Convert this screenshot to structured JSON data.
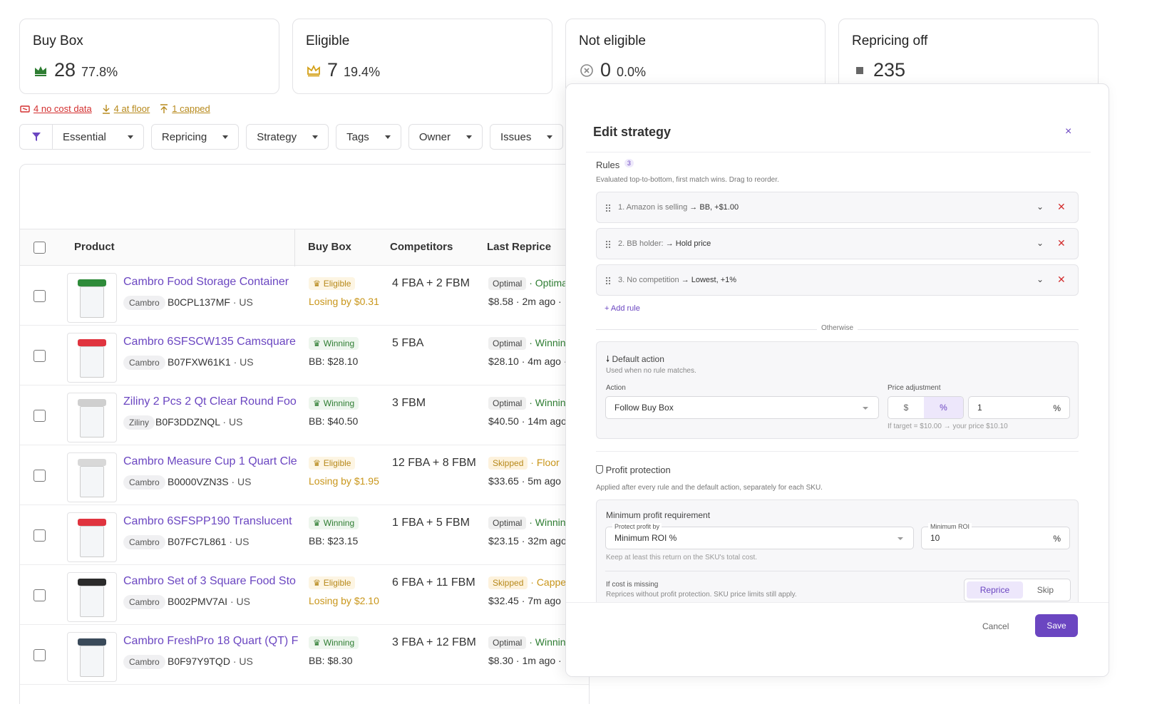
{
  "colors": {
    "accent": "#6b46c1",
    "win": "#2e7d32",
    "eligible": "#b7891b",
    "danger": "#d32f2f"
  },
  "cards": [
    {
      "title": "Buy Box",
      "value": "28",
      "pct": "77.8%",
      "icon": "crown-icon-green"
    },
    {
      "title": "Eligible",
      "value": "7",
      "pct": "19.4%",
      "icon": "crown-icon-gold"
    },
    {
      "title": "Not eligible",
      "value": "0",
      "pct": "0.0%",
      "icon": "x-circle-icon"
    },
    {
      "title": "Repricing off",
      "value": "235",
      "pct": "",
      "icon": "stop-square-icon"
    }
  ],
  "alerts": [
    {
      "label": "4 no cost data",
      "icon": "tag-off-icon"
    },
    {
      "label": "4 at floor",
      "icon": "arrow-down-icon"
    },
    {
      "label": "1 capped",
      "icon": "arrow-up-icon"
    }
  ],
  "filters": {
    "essential": "Essential",
    "repricing": "Repricing",
    "strategy": "Strategy",
    "tags": "Tags",
    "owner": "Owner",
    "issues": "Issues"
  },
  "table": {
    "headers": {
      "product": "Product",
      "buybox": "Buy Box",
      "competitors": "Competitors",
      "last_reprice": "Last Reprice"
    },
    "rows": [
      {
        "name": "Cambro Food Storage Container",
        "brand": "Cambro",
        "asin": "B0CPL137MF",
        "market": "· US",
        "status": "Eligible",
        "sub": "Losing by $0.31",
        "competitors": "4 FBA + 2 FBM",
        "tag": "Optimal",
        "tag_note": "· Optima",
        "reprice": "$8.58 · 2m ago ·"
      },
      {
        "name": "Cambro 6SFSCW135 Camsquare",
        "brand": "Cambro",
        "asin": "B07FXW61K1",
        "market": "· US",
        "status": "Winning",
        "sub": "BB: $28.10",
        "competitors": "5 FBA",
        "tag": "Optimal",
        "tag_note": "· Winnin",
        "reprice": "$28.10 · 4m ago ·"
      },
      {
        "name": "Ziliny 2 Pcs 2 Qt Clear Round Foo",
        "brand": "Ziliny",
        "asin": "B0F3DDZNQL",
        "market": "· US",
        "status": "Winning",
        "sub": "BB: $40.50",
        "competitors": "3 FBM",
        "tag": "Optimal",
        "tag_note": "· Winnin",
        "reprice": "$40.50 · 14m ago"
      },
      {
        "name": "Cambro Measure Cup 1 Quart Cle",
        "brand": "Cambro",
        "asin": "B0000VZN3S",
        "market": "· US",
        "status": "Eligible",
        "sub": "Losing by $1.95",
        "competitors": "12 FBA + 8 FBM",
        "tag": "Skipped",
        "tag_note": "· Floor",
        "reprice": "$33.65 · 5m ago"
      },
      {
        "name": "Cambro 6SFSPP190 Translucent",
        "brand": "Cambro",
        "asin": "B07FC7L861",
        "market": "· US",
        "status": "Winning",
        "sub": "BB: $23.15",
        "competitors": "1 FBA + 5 FBM",
        "tag": "Optimal",
        "tag_note": "· Winnin",
        "reprice": "$23.15 · 32m ago"
      },
      {
        "name": "Cambro Set of 3 Square Food Sto",
        "brand": "Cambro",
        "asin": "B002PMV7AI",
        "market": "· US",
        "status": "Eligible",
        "sub": "Losing by $2.10",
        "competitors": "6 FBA + 11 FBM",
        "tag": "Skipped",
        "tag_note": "· Cappe",
        "reprice": "$32.45 · 7m ago"
      },
      {
        "name": "Cambro FreshPro 18 Quart (QT) F",
        "brand": "Cambro",
        "asin": "B0F97Y9TQD",
        "market": "· US",
        "status": "Winning",
        "sub": "BB: $8.30",
        "competitors": "3 FBA + 12 FBM",
        "tag": "Optimal",
        "tag_note": "· Winnin",
        "reprice": "$8.30 · 1m ago ·"
      }
    ]
  },
  "modal": {
    "title": "Edit strategy",
    "close": "×",
    "rules_label": "Rules",
    "rules_count": "3",
    "rules_help": "Evaluated top-to-bottom, first match wins. Drag to reorder.",
    "rules": [
      {
        "num": "1.",
        "cond": "Amazon is selling",
        "arrow": "→",
        "action": "BB, +$1.00"
      },
      {
        "num": "2.",
        "cond": "BB holder:",
        "arrow": "→",
        "action": "Hold price"
      },
      {
        "num": "3.",
        "cond": "No competition",
        "arrow": "→",
        "action": "Lowest, +1%"
      }
    ],
    "add_rule": "+ Add rule",
    "otherwise": "Otherwise",
    "default_title": "Default action",
    "default_help": "Used when no rule matches.",
    "action_label": "Action",
    "action_value": "Follow Buy Box",
    "adj_label": "Price adjustment",
    "adj_dollar": "$",
    "adj_pct": "%",
    "adj_value": "1",
    "adj_unit": "%",
    "adj_hint": "If target = $10.00 → your price $10.10",
    "profit_title": "Profit protection",
    "profit_help": "Applied after every rule and the default action, separately for each SKU.",
    "min_req": "Minimum profit requirement",
    "protect_label": "Protect profit by",
    "protect_value": "Minimum ROI %",
    "roi_label": "Minimum ROI",
    "roi_value": "10",
    "roi_unit": "%",
    "keep_hint": "Keep at least this return on the SKU's total cost.",
    "missing_title": "If cost is missing",
    "missing_help": "Reprices without profit protection. SKU price limits still apply.",
    "reprice": "Reprice",
    "skip": "Skip",
    "cancel": "Cancel",
    "save": "Save"
  }
}
